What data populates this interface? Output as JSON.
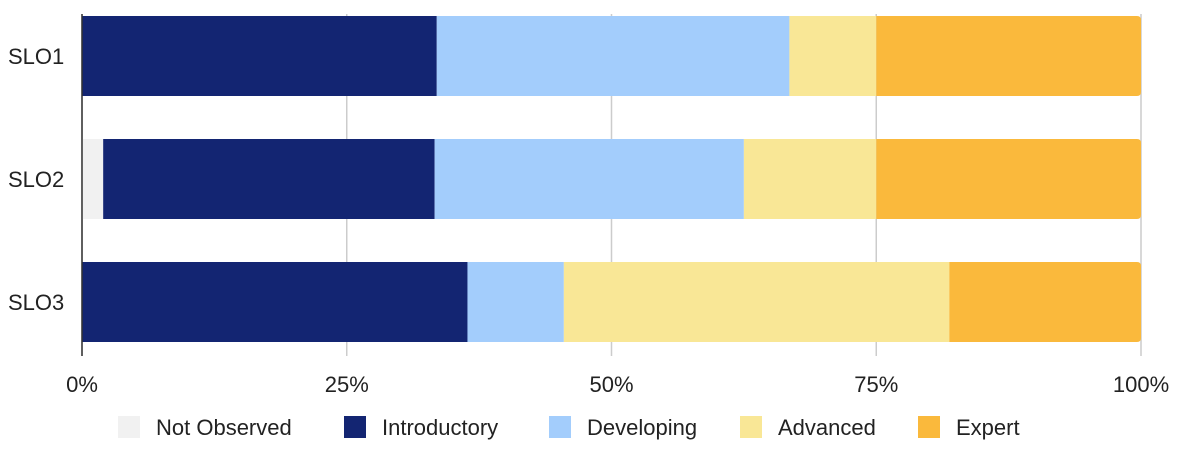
{
  "chart_data": {
    "type": "bar",
    "orientation": "horizontal",
    "stacked": true,
    "normalized": true,
    "categories": [
      "SLO1",
      "SLO2",
      "SLO3"
    ],
    "series": [
      {
        "name": "Not Observed",
        "color": "#f1f1f1",
        "values": [
          0,
          2,
          0
        ]
      },
      {
        "name": "Introductory",
        "color": "#132572",
        "values": [
          33.5,
          31.3,
          36.4
        ]
      },
      {
        "name": "Developing",
        "color": "#a3cdfc",
        "values": [
          33.3,
          29.2,
          9.1
        ]
      },
      {
        "name": "Advanced",
        "color": "#f9e796",
        "values": [
          8.2,
          12.5,
          36.4
        ]
      },
      {
        "name": "Expert",
        "color": "#fab93c",
        "values": [
          25.0,
          25.0,
          18.1
        ]
      }
    ],
    "x_ticks": [
      "0%",
      "25%",
      "50%",
      "75%",
      "100%"
    ],
    "xlim": [
      0,
      100
    ],
    "grid": true,
    "legend_position": "bottom"
  }
}
